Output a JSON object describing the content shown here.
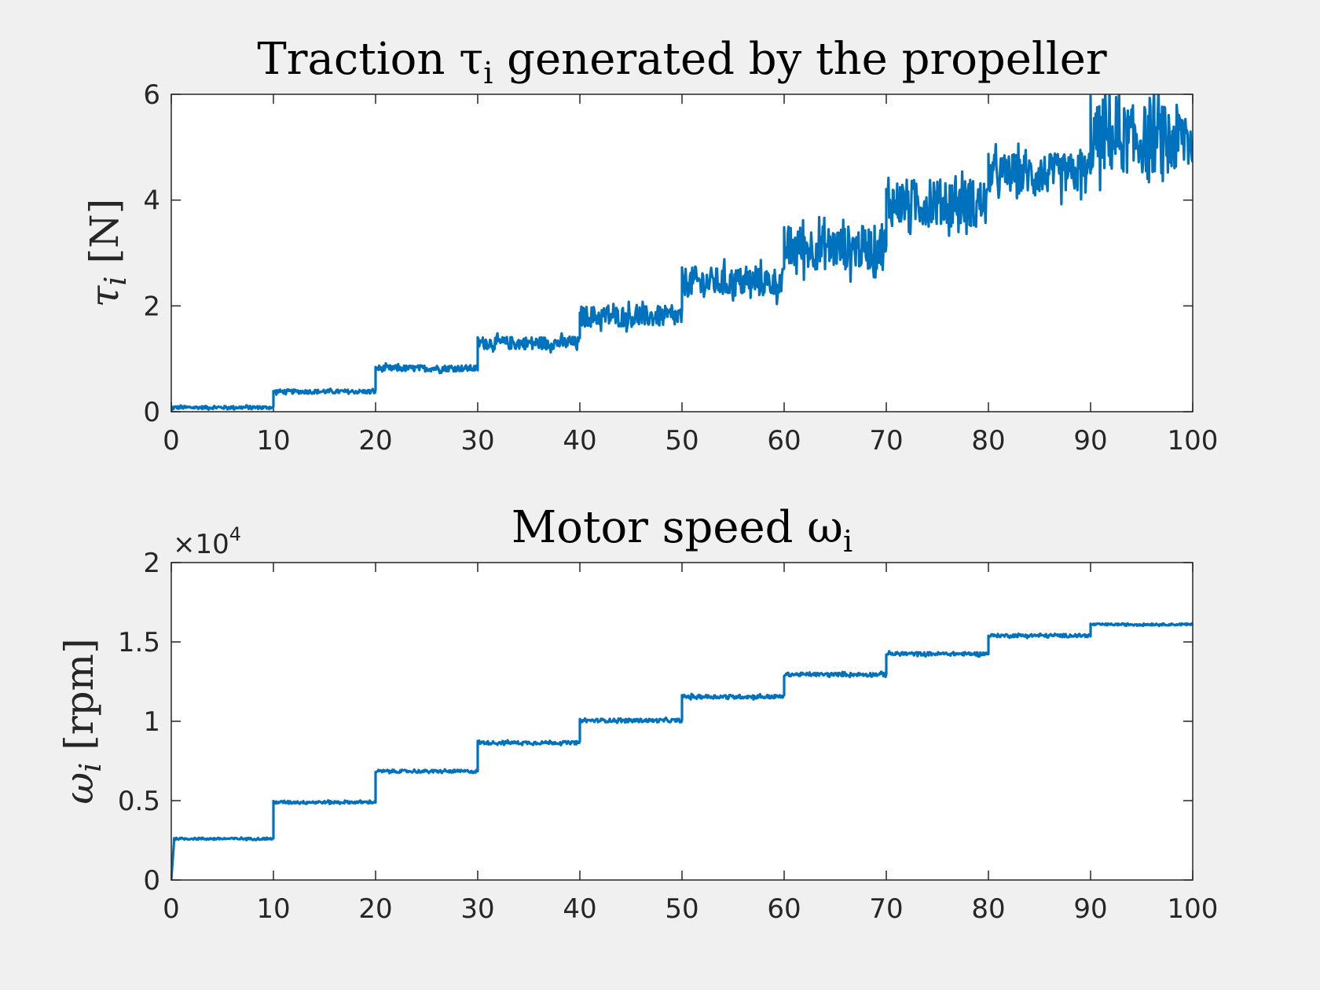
{
  "figure": {
    "background": "#f0f0f0",
    "line_color": "#0072bd"
  },
  "chart_data": [
    {
      "type": "line",
      "title": "Traction τ",
      "title_subscript": "i",
      "title_suffix": " generated by the propeller",
      "ylabel_symbol": "τ",
      "ylabel_subscript": "i",
      "ylabel_unit": " [N]",
      "xlim": [
        0,
        100
      ],
      "ylim": [
        0,
        6
      ],
      "xticks": [
        0,
        10,
        20,
        30,
        40,
        50,
        60,
        70,
        80,
        90,
        100
      ],
      "yticks": [
        0,
        2,
        4,
        6
      ],
      "xtick_labels": [
        "0",
        "10",
        "20",
        "30",
        "40",
        "50",
        "60",
        "70",
        "80",
        "90",
        "100"
      ],
      "ytick_labels": [
        "0",
        "2",
        "4",
        "6"
      ],
      "grid": false,
      "series": [
        {
          "color": "#0072bd",
          "style": "noisy staircase",
          "steps": [
            {
              "x0": 0,
              "x1": 10,
              "y": 0.08,
              "noise": 0.03
            },
            {
              "x0": 10,
              "x1": 20,
              "y": 0.38,
              "noise": 0.04
            },
            {
              "x0": 20,
              "x1": 30,
              "y": 0.82,
              "noise": 0.06
            },
            {
              "x0": 30,
              "x1": 40,
              "y": 1.3,
              "noise": 0.12
            },
            {
              "x0": 40,
              "x1": 50,
              "y": 1.8,
              "noise": 0.2
            },
            {
              "x0": 50,
              "x1": 60,
              "y": 2.45,
              "noise": 0.28
            },
            {
              "x0": 60,
              "x1": 70,
              "y": 3.1,
              "noise": 0.42
            },
            {
              "x0": 70,
              "x1": 80,
              "y": 3.95,
              "noise": 0.45
            },
            {
              "x0": 80,
              "x1": 90,
              "y": 4.5,
              "noise": 0.38
            },
            {
              "x0": 90,
              "x1": 100,
              "y": 5.15,
              "noise": 0.65
            }
          ]
        }
      ]
    },
    {
      "type": "line",
      "title": "Motor speed ω",
      "title_subscript": "i",
      "title_suffix": "",
      "ylabel_symbol": "ω",
      "ylabel_subscript": "i",
      "ylabel_unit": " [rpm]",
      "y_multiplier": "×10",
      "y_multiplier_exp": "4",
      "xlim": [
        0,
        100
      ],
      "ylim": [
        0,
        20000
      ],
      "xticks": [
        0,
        10,
        20,
        30,
        40,
        50,
        60,
        70,
        80,
        90,
        100
      ],
      "yticks": [
        0,
        5000,
        10000,
        15000,
        20000
      ],
      "xtick_labels": [
        "0",
        "10",
        "20",
        "30",
        "40",
        "50",
        "60",
        "70",
        "80",
        "90",
        "100"
      ],
      "ytick_labels": [
        "0",
        "0.5",
        "1",
        "1.5",
        "2"
      ],
      "grid": false,
      "series": [
        {
          "color": "#0072bd",
          "style": "noisy staircase",
          "steps": [
            {
              "x0": 0,
              "x1": 10,
              "y": 2600,
              "noise": 60
            },
            {
              "x0": 10,
              "x1": 20,
              "y": 4900,
              "noise": 80
            },
            {
              "x0": 20,
              "x1": 30,
              "y": 6850,
              "noise": 90
            },
            {
              "x0": 30,
              "x1": 40,
              "y": 8650,
              "noise": 100
            },
            {
              "x0": 40,
              "x1": 50,
              "y": 10050,
              "noise": 110
            },
            {
              "x0": 50,
              "x1": 60,
              "y": 11550,
              "noise": 120
            },
            {
              "x0": 60,
              "x1": 70,
              "y": 12950,
              "noise": 110
            },
            {
              "x0": 70,
              "x1": 80,
              "y": 14250,
              "noise": 110
            },
            {
              "x0": 80,
              "x1": 90,
              "y": 15400,
              "noise": 100
            },
            {
              "x0": 90,
              "x1": 100,
              "y": 16100,
              "noise": 60
            }
          ]
        }
      ]
    }
  ]
}
